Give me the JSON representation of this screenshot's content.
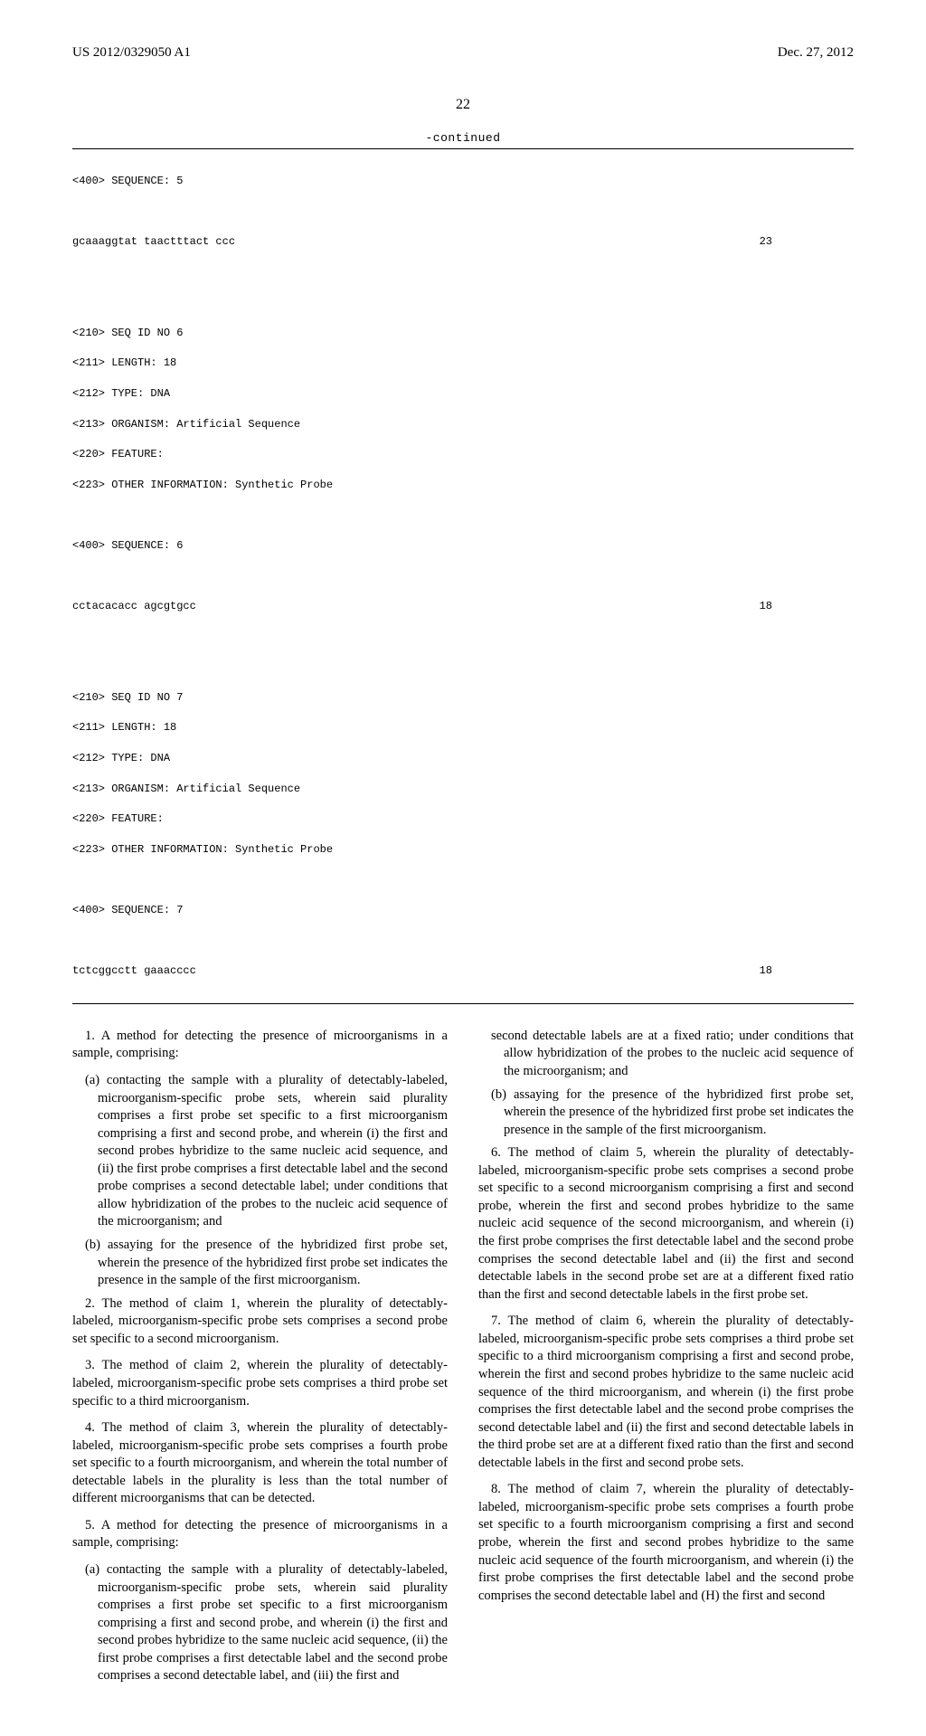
{
  "header": {
    "left": "US 2012/0329050 A1",
    "right": "Dec. 27, 2012"
  },
  "page_number": "22",
  "continued_label": "-continued",
  "sequences": {
    "seq5": {
      "header": "<400> SEQUENCE: 5",
      "body": "gcaaaggtat taactttact ccc",
      "length": "23"
    },
    "seq6": {
      "lines": [
        "<210> SEQ ID NO 6",
        "<211> LENGTH: 18",
        "<212> TYPE: DNA",
        "<213> ORGANISM: Artificial Sequence",
        "<220> FEATURE:",
        "<223> OTHER INFORMATION: Synthetic Probe"
      ],
      "header": "<400> SEQUENCE: 6",
      "body": "cctacacacc agcgtgcc",
      "length": "18"
    },
    "seq7": {
      "lines": [
        "<210> SEQ ID NO 7",
        "<211> LENGTH: 18",
        "<212> TYPE: DNA",
        "<213> ORGANISM: Artificial Sequence",
        "<220> FEATURE:",
        "<223> OTHER INFORMATION: Synthetic Probe"
      ],
      "header": "<400> SEQUENCE: 7",
      "body": "tctcggcctt gaaacccc",
      "length": "18"
    }
  },
  "claims": {
    "c1_lead": "1. A method for detecting the presence of microorganisms in a sample, comprising:",
    "c1_a": "(a) contacting the sample with a plurality of detectably-labeled, microorganism-specific probe sets, wherein said plurality comprises a first probe set specific to a first microorganism comprising a first and second probe, and wherein (i) the first and second probes hybridize to the same nucleic acid sequence, and (ii) the first probe comprises a first detectable label and the second probe comprises a second detectable label; under conditions that allow hybridization of the probes to the nucleic acid sequence of the microorganism; and",
    "c1_b": "(b) assaying for the presence of the hybridized first probe set, wherein the presence of the hybridized first probe set indicates the presence in the sample of the first microorganism.",
    "c2": "2. The method of claim 1, wherein the plurality of detectably-labeled, microorganism-specific probe sets comprises a second probe set specific to a second microorganism.",
    "c3": "3. The method of claim 2, wherein the plurality of detectably-labeled, microorganism-specific probe sets comprises a third probe set specific to a third microorganism.",
    "c4": "4. The method of claim 3, wherein the plurality of detectably-labeled, microorganism-specific probe sets comprises a fourth probe set specific to a fourth microorganism, and wherein the total number of detectable labels in the plurality is less than the total number of different microorganisms that can be detected.",
    "c5_lead": "5. A method for detecting the presence of microorganisms in a sample, comprising:",
    "c5_a": "(a) contacting the sample with a plurality of detectably-labeled, microorganism-specific probe sets, wherein said plurality comprises a first probe set specific to a first microorganism comprising a first and second probe, and wherein (i) the first and second probes hybridize to the same nucleic acid sequence, (ii) the first probe comprises a first detectable label and the second probe comprises a second detectable label, and (iii) the first and",
    "c5_a_cont": "second detectable labels are at a fixed ratio; under conditions that allow hybridization of the probes to the nucleic acid sequence of the microorganism; and",
    "c5_b": "(b) assaying for the presence of the hybridized first probe set, wherein the presence of the hybridized first probe set indicates the presence in the sample of the first microorganism.",
    "c6": "6. The method of claim 5, wherein the plurality of detectably-labeled, microorganism-specific probe sets comprises a second probe set specific to a second microorganism comprising a first and second probe, wherein the first and second probes hybridize to the same nucleic acid sequence of the second microorganism, and wherein (i) the first probe comprises the first detectable label and the second probe comprises the second detectable label and (ii) the first and second detectable labels in the second probe set are at a different fixed ratio than the first and second detectable labels in the first probe set.",
    "c7": "7. The method of claim 6, wherein the plurality of detectably-labeled, microorganism-specific probe sets comprises a third probe set specific to a third microorganism comprising a first and second probe, wherein the first and second probes hybridize to the same nucleic acid sequence of the third microorganism, and wherein (i) the first probe comprises the first detectable label and the second probe comprises the second detectable label and (ii) the first and second detectable labels in the third probe set are at a different fixed ratio than the first and second detectable labels in the first and second probe sets.",
    "c8": "8. The method of claim 7, wherein the plurality of detectably-labeled, microorganism-specific probe sets comprises a fourth probe set specific to a fourth microorganism comprising a first and second probe, wherein the first and second probes hybridize to the same nucleic acid sequence of the fourth microorganism, and wherein (i) the first probe comprises the first detectable label and the second probe comprises the second detectable label and (H) the first and second"
  }
}
